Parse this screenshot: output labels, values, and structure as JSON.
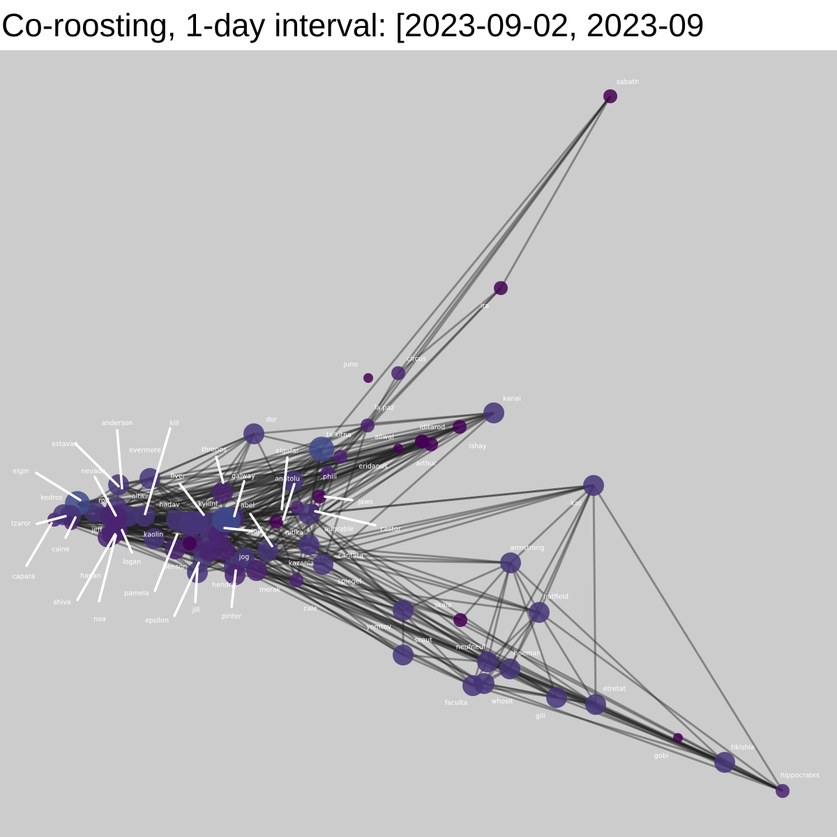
{
  "title": "Co-roosting, 1-day interval: [2023-09-02, 2023-09",
  "colors": {
    "background": "#cccccc",
    "edge": "#222222",
    "label": "#ffffff",
    "palette": [
      "#440154",
      "#4a2470",
      "#473578",
      "#3e4a89",
      "#3b5a8f"
    ]
  },
  "nodes": [
    {
      "id": "sabath",
      "label": "sabath",
      "color": 0,
      "size": 1
    },
    {
      "id": "ira",
      "label": "ira",
      "color": 0,
      "size": 1
    },
    {
      "id": "juno",
      "label": "juno",
      "color": 0,
      "size": 0
    },
    {
      "id": "circus",
      "label": "circus",
      "color": 1,
      "size": 1
    },
    {
      "id": "kanai",
      "label": "kanai",
      "color": 2,
      "size": 2
    },
    {
      "id": "la-paz",
      "label": "la paz",
      "color": 1,
      "size": 1
    },
    {
      "id": "iditarod",
      "label": "iditarod",
      "color": 0,
      "size": 1
    },
    {
      "id": "aliwal",
      "label": "aliwal",
      "color": 0,
      "size": 0
    },
    {
      "id": "ishay",
      "label": "ishay",
      "color": 0,
      "size": 1
    },
    {
      "id": "arthur",
      "label": "arthur",
      "color": 0,
      "size": 1
    },
    {
      "id": "arthur2",
      "label": "",
      "color": 0,
      "size": 1
    },
    {
      "id": "talkitna",
      "label": "talkitna",
      "color": 3,
      "size": 3
    },
    {
      "id": "dor",
      "label": "dor",
      "color": 2,
      "size": 2
    },
    {
      "id": "eridanus",
      "label": "eridanus",
      "color": 1,
      "size": 1
    },
    {
      "id": "phili",
      "label": "phili",
      "color": 1,
      "size": 1
    },
    {
      "id": "kat",
      "label": "kat",
      "color": 2,
      "size": 2
    },
    {
      "id": "elgafar",
      "label": "elgafar",
      "color": 2,
      "size": 2
    },
    {
      "id": "anatolu",
      "label": "anatolu",
      "color": 1,
      "size": 1
    },
    {
      "id": "jaws",
      "label": "jaws",
      "color": 0,
      "size": 1
    },
    {
      "id": "castor",
      "label": "castor",
      "color": 0,
      "size": 0
    },
    {
      "id": "augrable",
      "label": "augrable",
      "color": 2,
      "size": 2
    },
    {
      "id": "nitika",
      "label": "nitika",
      "color": 0,
      "size": 1
    },
    {
      "id": "thronos",
      "label": "thronos",
      "color": 1,
      "size": 2
    },
    {
      "id": "galway",
      "label": "galway",
      "color": 1,
      "size": 2
    },
    {
      "id": "abel",
      "label": "abel",
      "color": 3,
      "size": 3
    },
    {
      "id": "jojo",
      "label": "jojo",
      "color": 1,
      "size": 2
    },
    {
      "id": "cantata",
      "label": "cantata",
      "color": 2,
      "size": 2
    },
    {
      "id": "kazania",
      "label": "kazania",
      "color": 2,
      "size": 2
    },
    {
      "id": "spiegel",
      "label": "spiegel",
      "color": 2,
      "size": 2
    },
    {
      "id": "jog",
      "label": "jog",
      "color": 2,
      "size": 2
    },
    {
      "id": "merak",
      "label": "merak",
      "color": 1,
      "size": 2
    },
    {
      "id": "cale",
      "label": "cale",
      "color": 1,
      "size": 1
    },
    {
      "id": "hendrix",
      "label": "hendrix",
      "color": 2,
      "size": 2
    },
    {
      "id": "pinter",
      "label": "pinter",
      "color": 1,
      "size": 2
    },
    {
      "id": "kyllini",
      "label": "kyllini",
      "color": 2,
      "size": 3
    },
    {
      "id": "fiver",
      "label": "fiver",
      "color": 2,
      "size": 2
    },
    {
      "id": "hadav",
      "label": "hadav",
      "color": 2,
      "size": 2
    },
    {
      "id": "evermore",
      "label": "evermore",
      "color": 2,
      "size": 2
    },
    {
      "id": "kiil",
      "label": "kiil",
      "color": 2,
      "size": 2
    },
    {
      "id": "altair",
      "label": "altair",
      "color": 2,
      "size": 2
    },
    {
      "id": "anderson",
      "label": "anderson",
      "color": 2,
      "size": 2
    },
    {
      "id": "estavan",
      "label": "estavan",
      "color": 2,
      "size": 2
    },
    {
      "id": "nevada",
      "label": "nevada",
      "color": 2,
      "size": 2
    },
    {
      "id": "rod",
      "label": "rod",
      "color": 2,
      "size": 2
    },
    {
      "id": "elgin",
      "label": "elgin",
      "color": 3,
      "size": 3
    },
    {
      "id": "kedros",
      "label": "kedros",
      "color": 2,
      "size": 2
    },
    {
      "id": "tzaror",
      "label": "tzaror",
      "color": 1,
      "size": 1
    },
    {
      "id": "capara",
      "label": "capara",
      "color": 2,
      "size": 2
    },
    {
      "id": "caine",
      "label": "caine",
      "color": 1,
      "size": 1
    },
    {
      "id": "jeff",
      "label": "jeff",
      "color": 1,
      "size": 2
    },
    {
      "id": "kaolin",
      "label": "kaolin",
      "color": 2,
      "size": 2
    },
    {
      "id": "logan",
      "label": "logan",
      "color": 1,
      "size": 2
    },
    {
      "id": "hanan",
      "label": "hanan",
      "color": 1,
      "size": 2
    },
    {
      "id": "shiva",
      "label": "shiva",
      "color": 1,
      "size": 2
    },
    {
      "id": "noa",
      "label": "noa",
      "color": 1,
      "size": 2
    },
    {
      "id": "pamela",
      "label": "pamela",
      "color": 1,
      "size": 2
    },
    {
      "id": "benson",
      "label": "benson",
      "color": 2,
      "size": 2
    },
    {
      "id": "epsilon",
      "label": "epsilon",
      "color": 2,
      "size": 2
    },
    {
      "id": "jill",
      "label": "jill",
      "color": 2,
      "size": 2
    },
    {
      "id": "c1",
      "label": "",
      "color": 1,
      "size": 2
    },
    {
      "id": "c2",
      "label": "",
      "color": 2,
      "size": 3
    },
    {
      "id": "c3",
      "label": "",
      "color": 1,
      "size": 2
    },
    {
      "id": "c4",
      "label": "",
      "color": 0,
      "size": 1
    },
    {
      "id": "c5",
      "label": "",
      "color": 1,
      "size": 2
    },
    {
      "id": "c6",
      "label": "",
      "color": 2,
      "size": 2
    },
    {
      "id": "c7",
      "label": "",
      "color": 1,
      "size": 2
    },
    {
      "id": "c8",
      "label": "",
      "color": 3,
      "size": 3
    },
    {
      "id": "skala",
      "label": "skala",
      "color": 0,
      "size": 1
    },
    {
      "id": "yomtov",
      "label": "yomtov",
      "color": 2,
      "size": 2
    },
    {
      "id": "scout",
      "label": "scout",
      "color": 2,
      "size": 2
    },
    {
      "id": "armstrong",
      "label": "armstrong",
      "color": 2,
      "size": 2
    },
    {
      "id": "hatfield",
      "label": "hatfield",
      "color": 2,
      "size": 2
    },
    {
      "id": "neufneuf",
      "label": "neufneuf",
      "color": 2,
      "size": 2
    },
    {
      "id": "hoeman",
      "label": "hoeman",
      "color": 2,
      "size": 2
    },
    {
      "id": "faculta",
      "label": "faculta",
      "color": 2,
      "size": 2
    },
    {
      "id": "whosit",
      "label": "whosit",
      "color": 2,
      "size": 2
    },
    {
      "id": "gili",
      "label": "gili",
      "color": 2,
      "size": 2
    },
    {
      "id": "etretat",
      "label": "etretat",
      "color": 2,
      "size": 2
    },
    {
      "id": "gobi",
      "label": "gobi",
      "color": 0,
      "size": 0
    },
    {
      "id": "tikishla",
      "label": "tikishla",
      "color": 2,
      "size": 2
    },
    {
      "id": "hippocrates",
      "label": "hippocrates",
      "color": 1,
      "size": 1
    }
  ]
}
